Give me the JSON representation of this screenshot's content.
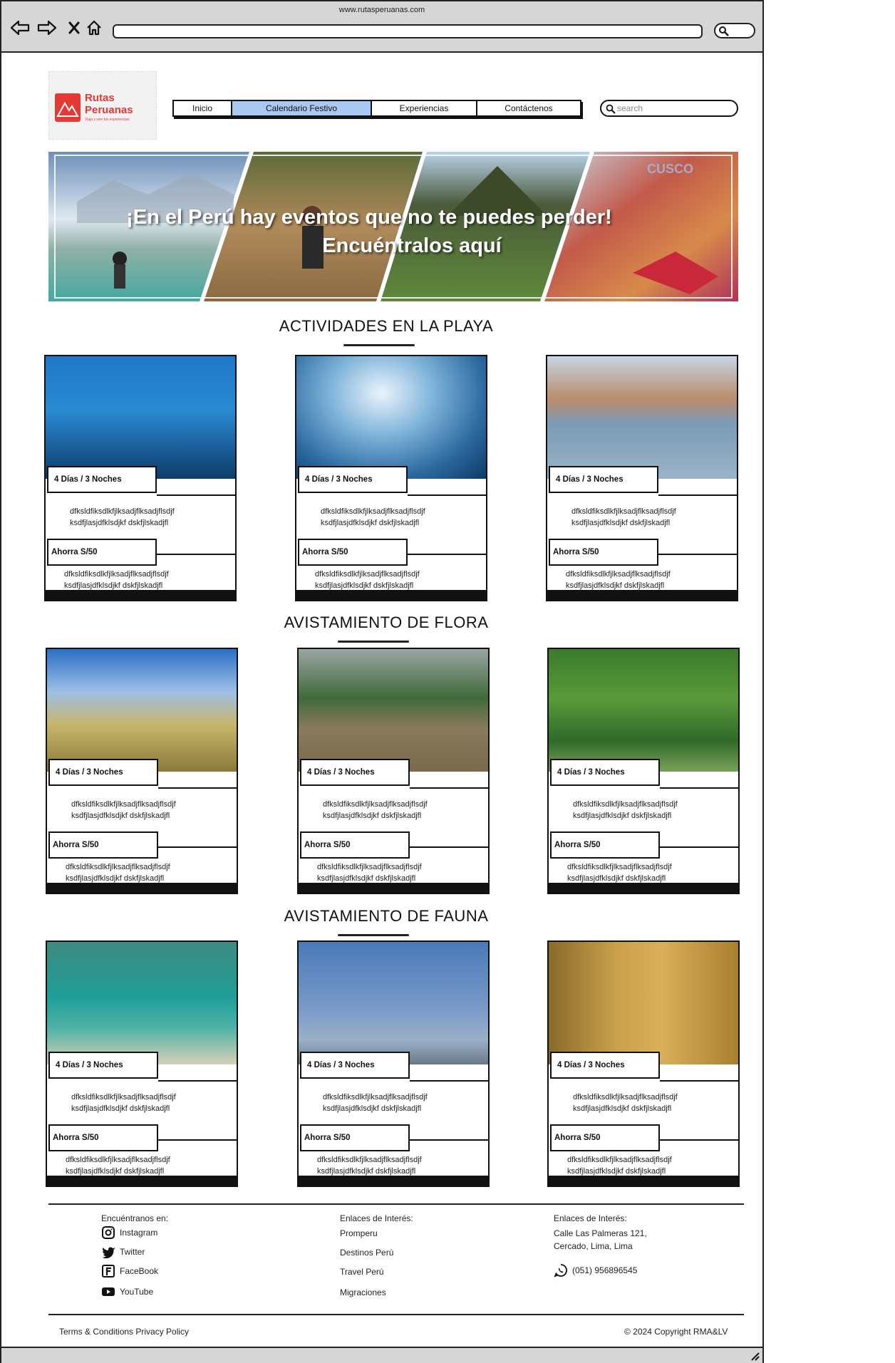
{
  "browser": {
    "url": "www.rutasperuanas.com"
  },
  "logo": {
    "title_line1": "Rutas",
    "title_line2": "Peruanas",
    "tagline": "Viaja y vive tus experiencias"
  },
  "nav": {
    "items": [
      {
        "label": "Inicio",
        "active": false
      },
      {
        "label": "Calendario Festivo",
        "active": true
      },
      {
        "label": "Experiencias",
        "active": false
      },
      {
        "label": "Contáctenos",
        "active": false
      }
    ]
  },
  "search": {
    "placeholder": "search"
  },
  "hero": {
    "line1": "¡En el Perú hay eventos que no te puedes perder!",
    "line2": "Encuéntralos aquí",
    "watermark": "CUSCO"
  },
  "sections": [
    {
      "title": "ACTIVIDADES EN LA PLAYA",
      "cards": [
        {
          "duration": "4 Días / 3 Noches",
          "desc_line1": "dfksldfiksdlkfjlksadjflksadjflsdjf",
          "desc_line2": "ksdfjlasjdfklsdjkf dskfjlskadjfl",
          "price": "Ahorra S/50",
          "desc2_line1": "dfksldfiksdlkfjlksadjflksadjflsdjf",
          "desc2_line2": "ksdfjlasjdfklsdjkf dskfjlskadjfl"
        },
        {
          "duration": "4 Días / 3 Noches",
          "desc_line1": "dfksldfiksdlkfjlksadjflksadjflsdjf",
          "desc_line2": "ksdfjlasjdfklsdjkf dskfjlskadjfl",
          "price": "Ahorra S/50",
          "desc2_line1": "dfksldfiksdlkfjlksadjflksadjflsdjf",
          "desc2_line2": "ksdfjlasjdfklsdjkf dskfjlskadjfl"
        },
        {
          "duration": "4 Días / 3 Noches",
          "desc_line1": "dfksldfiksdlkfjlksadjflksadjflsdjf",
          "desc_line2": "ksdfjlasjdfklsdjkf dskfjlskadjfl",
          "price": "Ahorra S/50",
          "desc2_line1": "dfksldfiksdlkfjlksadjflksadjflsdjf",
          "desc2_line2": "ksdfjlasjdfklsdjkf dskfjlskadjfl"
        }
      ]
    },
    {
      "title": "AVISTAMIENTO DE FLORA",
      "cards": [
        {
          "duration": "4 Días / 3 Noches",
          "desc_line1": "dfksldfiksdlkfjlksadjflksadjflsdjf",
          "desc_line2": "ksdfjlasjdfklsdjkf dskfjlskadjfl",
          "price": "Ahorra S/50",
          "desc2_line1": "dfksldfiksdlkfjlksadjflksadjflsdjf",
          "desc2_line2": "ksdfjlasjdfklsdjkf dskfjlskadjfl"
        },
        {
          "duration": "4 Días / 3 Noches",
          "desc_line1": "dfksldfiksdlkfjlksadjflksadjflsdjf",
          "desc_line2": "ksdfjlasjdfklsdjkf dskfjlskadjfl",
          "price": "Ahorra S/50",
          "desc2_line1": "dfksldfiksdlkfjlksadjflksadjflsdjf",
          "desc2_line2": "ksdfjlasjdfklsdjkf dskfjlskadjfl"
        },
        {
          "duration": "4 Días / 3 Noches",
          "desc_line1": "dfksldfiksdlkfjlksadjflksadjflsdjf",
          "desc_line2": "ksdfjlasjdfklsdjkf dskfjlskadjfl",
          "price": "Ahorra S/50",
          "desc2_line1": "dfksldfiksdlkfjlksadjflksadjflsdjf",
          "desc2_line2": "ksdfjlasjdfklsdjkf dskfjlskadjfl"
        }
      ]
    },
    {
      "title": "AVISTAMIENTO DE FAUNA",
      "cards": [
        {
          "duration": "4 Días / 3 Noches",
          "desc_line1": "dfksldfiksdlkfjlksadjflksadjflsdjf",
          "desc_line2": "ksdfjlasjdfklsdjkf dskfjlskadjfl",
          "price": "Ahorra S/50",
          "desc2_line1": "dfksldfiksdlkfjlksadjflksadjflsdjf",
          "desc2_line2": "ksdfjlasjdfklsdjkf dskfjlskadjfl"
        },
        {
          "duration": "4 Días / 3 Noches",
          "desc_line1": "dfksldfiksdlkfjlksadjflksadjflsdjf",
          "desc_line2": "ksdfjlasjdfklsdjkf dskfjlskadjfl",
          "price": "Ahorra S/50",
          "desc2_line1": "dfksldfiksdlkfjlksadjflksadjflsdjf",
          "desc2_line2": "ksdfjlasjdfklsdjkf dskfjlskadjfl"
        },
        {
          "duration": "4 Días / 3 Noches",
          "desc_line1": "dfksldfiksdlkfjlksadjflksadjflsdjf",
          "desc_line2": "ksdfjlasjdfklsdjkf dskfjlskadjfl",
          "price": "Ahorra S/50",
          "desc2_line1": "dfksldfiksdlkfjlksadjflksadjflsdjf",
          "desc2_line2": "ksdfjlasjdfklsdjkf dskfjlskadjfl"
        }
      ]
    }
  ],
  "footer": {
    "col1": {
      "heading": "Encuéntranos en:",
      "links": [
        "Instagram",
        "Twitter",
        "FaceBook",
        "YouTube"
      ]
    },
    "col2": {
      "heading": "Enlaces de Interés:",
      "links": [
        "Promperu",
        "Destinos Perú",
        "Travel Perú",
        "Migraciones"
      ]
    },
    "col3": {
      "heading": "Enlaces de Interés:",
      "address_line1": "Calle Las Palmeras 121,",
      "address_line2": "Cercado, Lima, Lima",
      "phone": "(051) 956896545"
    },
    "terms": "Terms & Conditions Privacy Policy",
    "copyright": "© 2024 Copyright RMA&LV"
  },
  "colors": {
    "nav_active": "#a9c8f2",
    "brand": "#e53935"
  }
}
